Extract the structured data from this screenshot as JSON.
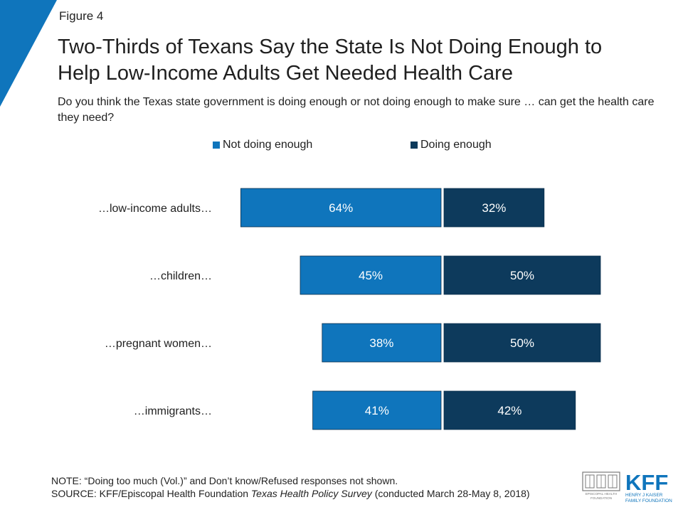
{
  "figure_label": "Figure 4",
  "title_line1": "Two-Thirds of Texans Say the State Is Not Doing Enough to",
  "title_line2": "Help Low-Income Adults Get Needed Health Care",
  "subtitle": "Do you think the Texas state government is doing enough or not doing enough to make sure … can get the health care they need?",
  "chart_data": {
    "type": "bar",
    "orientation": "horizontal-diverging",
    "categories": [
      "…low-income adults…",
      "…children…",
      "…pregnant women…",
      "…immigrants…"
    ],
    "series": [
      {
        "name": "Not doing enough",
        "values": [
          64,
          45,
          38,
          41
        ],
        "color": "#0f75bc",
        "direction": "left"
      },
      {
        "name": "Doing enough",
        "values": [
          32,
          50,
          50,
          42
        ],
        "color": "#0d3a5c",
        "direction": "right"
      }
    ],
    "value_suffix": "%",
    "legend_position": "top",
    "grid": false
  },
  "note": {
    "line1": "NOTE: “Doing too much (Vol.)” and Don’t know/Refused responses not shown.",
    "source_prefix": "SOURCE: KFF/Episcopal Health Foundation ",
    "source_italic": "Texas Health Policy Survey",
    "source_suffix": " (conducted March 28-May 8, 2018)"
  },
  "logos": {
    "ehf_line1": "EPISCOPAL HEALTH",
    "ehf_line2": "FOUNDATION",
    "kff_mark": "KFF",
    "kff_line1": "HENRY J KAISER",
    "kff_line2": "FAMILY FOUNDATION"
  },
  "colors": {
    "accent_blue": "#0f75bc",
    "dark_navy": "#0d3a5c"
  }
}
